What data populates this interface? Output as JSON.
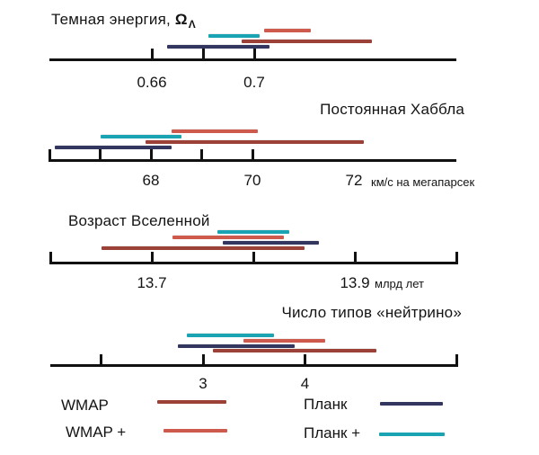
{
  "colors": {
    "wmap": "#9c4137",
    "wmap_plus": "#cd5a4d",
    "planck": "#33365f",
    "planck_plus": "#19a3b3",
    "axis": "#111111"
  },
  "legend": {
    "items": [
      {
        "key": "wmap",
        "label": "WMAP"
      },
      {
        "key": "wmap_plus",
        "label": "WMAP +"
      },
      {
        "key": "planck",
        "label": "Планк"
      },
      {
        "key": "planck_plus",
        "label": "Планк +"
      }
    ]
  },
  "chart_data": [
    {
      "type": "interval",
      "title": "Темная энергия, ",
      "title_symbol": "Ω",
      "title_sub": "Λ",
      "unit": "",
      "axis_range": [
        0.62,
        0.779
      ],
      "ticks": [
        {
          "value": 0.66,
          "label": "0.66"
        },
        {
          "value": 0.68,
          "label": ""
        },
        {
          "value": 0.7,
          "label": "0.7"
        }
      ],
      "bars": [
        {
          "series": "wmap_plus",
          "from": 0.704,
          "to": 0.722
        },
        {
          "series": "planck_plus",
          "from": 0.682,
          "to": 0.702
        },
        {
          "series": "wmap",
          "from": 0.695,
          "to": 0.746
        },
        {
          "series": "planck",
          "from": 0.666,
          "to": 0.706
        }
      ]
    },
    {
      "type": "interval",
      "title": "Постоянная Хаббла",
      "unit": "км/с на мегапарсек",
      "axis_range": [
        66,
        74
      ],
      "ticks": [
        {
          "value": 66,
          "label": ""
        },
        {
          "value": 67,
          "label": ""
        },
        {
          "value": 68,
          "label": "68"
        },
        {
          "value": 69,
          "label": ""
        },
        {
          "value": 70,
          "label": "70"
        },
        {
          "value": 72,
          "label": "72",
          "no_tick": true
        }
      ],
      "bars": [
        {
          "series": "wmap_plus",
          "from": 68.4,
          "to": 70.1
        },
        {
          "series": "planck_plus",
          "from": 67.0,
          "to": 68.6
        },
        {
          "series": "wmap",
          "from": 67.9,
          "to": 72.2
        },
        {
          "series": "planck",
          "from": 66.1,
          "to": 68.4
        }
      ]
    },
    {
      "type": "interval",
      "title": "Возраст Вселенной",
      "unit": "млрд лет",
      "axis_range": [
        13.6,
        14.0
      ],
      "ticks": [
        {
          "value": 13.6,
          "label": ""
        },
        {
          "value": 13.7,
          "label": "13.7"
        },
        {
          "value": 13.8,
          "label": ""
        },
        {
          "value": 13.9,
          "label": "13.9"
        },
        {
          "value": 14.0,
          "label": ""
        }
      ],
      "bars": [
        {
          "series": "planck_plus",
          "from": 13.765,
          "to": 13.835
        },
        {
          "series": "wmap_plus",
          "from": 13.72,
          "to": 13.83
        },
        {
          "series": "planck",
          "from": 13.77,
          "to": 13.865
        },
        {
          "series": "wmap",
          "from": 13.65,
          "to": 13.85
        }
      ]
    },
    {
      "type": "interval",
      "title": "Число типов «нейтрино»",
      "unit": "",
      "axis_range": [
        1.5,
        5.5
      ],
      "ticks": [
        {
          "value": 2,
          "label": ""
        },
        {
          "value": 3,
          "label": "3"
        },
        {
          "value": 4,
          "label": "4"
        }
      ],
      "bars": [
        {
          "series": "planck_plus",
          "from": 2.84,
          "to": 3.7
        },
        {
          "series": "wmap_plus",
          "from": 3.4,
          "to": 4.2
        },
        {
          "series": "planck",
          "from": 2.75,
          "to": 3.9
        },
        {
          "series": "wmap",
          "from": 3.1,
          "to": 4.7
        }
      ]
    }
  ]
}
